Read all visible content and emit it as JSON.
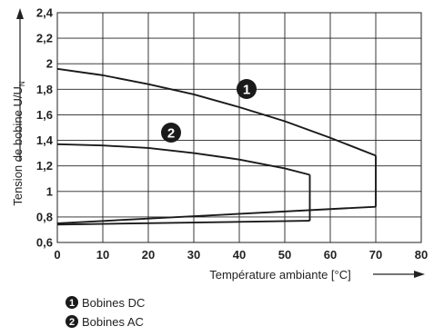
{
  "chart_data": {
    "type": "line",
    "xlabel": "Température ambiante [°C]",
    "ylabel_main": "Tension de bobine U/U",
    "ylabel_sub": "N",
    "xlim": [
      0,
      80
    ],
    "ylim": [
      0.6,
      2.4
    ],
    "x_ticks": [
      0,
      10,
      20,
      30,
      40,
      50,
      60,
      70,
      80
    ],
    "x_tick_labels": [
      "0",
      "10",
      "20",
      "30",
      "40",
      "50",
      "60",
      "70",
      "80"
    ],
    "y_ticks": [
      0.6,
      0.8,
      1.0,
      1.2,
      1.4,
      1.6,
      1.8,
      2.0,
      2.2,
      2.4
    ],
    "y_tick_labels": [
      "0,6",
      "0,8",
      "1",
      "1,2",
      "1,4",
      "1,6",
      "1,8",
      "2",
      "2,2",
      "2,4"
    ],
    "grid": true,
    "series": [
      {
        "marker": "1",
        "name": "Bobines DC",
        "upper": {
          "x": [
            0,
            10,
            20,
            30,
            40,
            50,
            60,
            70
          ],
          "y": [
            1.96,
            1.91,
            1.84,
            1.76,
            1.66,
            1.55,
            1.42,
            1.28
          ]
        },
        "lower": {
          "x": [
            0,
            70
          ],
          "y": [
            0.75,
            0.88
          ]
        },
        "cutoff_x": 70
      },
      {
        "marker": "2",
        "name": "Bobines AC",
        "upper": {
          "x": [
            0,
            10,
            20,
            30,
            40,
            50,
            55.5
          ],
          "y": [
            1.37,
            1.36,
            1.34,
            1.3,
            1.25,
            1.18,
            1.13
          ]
        },
        "lower": {
          "x": [
            0,
            55.5
          ],
          "y": [
            0.74,
            0.77
          ]
        },
        "cutoff_x": 55.5
      }
    ],
    "legend": [
      {
        "marker": "1",
        "label": "Bobines DC"
      },
      {
        "marker": "2",
        "label": "Bobines AC"
      }
    ],
    "legend_position": "bottom-left"
  }
}
